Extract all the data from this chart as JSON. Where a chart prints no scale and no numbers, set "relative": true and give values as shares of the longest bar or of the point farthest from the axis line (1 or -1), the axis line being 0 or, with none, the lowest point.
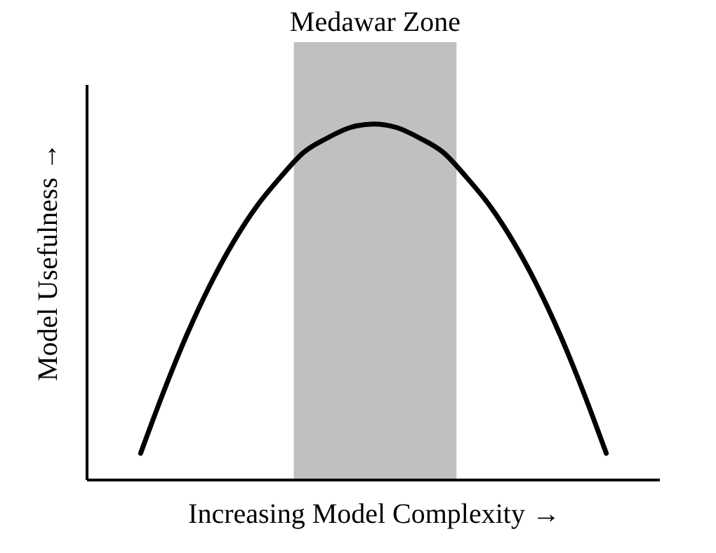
{
  "chart_data": {
    "type": "line",
    "relative": true,
    "xlabel": "Increasing Model Complexity →",
    "ylabel": "Model Usefulness →",
    "categories": [
      null,
      null,
      null,
      null,
      null,
      null,
      null,
      null,
      null,
      null,
      null,
      null,
      null,
      null,
      null,
      null,
      null,
      null,
      null,
      null,
      null
    ],
    "series": [
      {
        "color": "#000000",
        "values": [
          0.075,
          0.25,
          0.41,
          0.55,
          0.67,
          0.77,
          0.85,
          0.92,
          0.96,
          0.99,
          1,
          0.99,
          0.96,
          0.92,
          0.85,
          0.77,
          0.67,
          0.55,
          0.41,
          0.25,
          0.075
        ]
      }
    ],
    "annotations": [
      "Medawar Zone"
    ],
    "tick_labels": false,
    "grid": false,
    "marker": "none",
    "line_style": "solid"
  }
}
